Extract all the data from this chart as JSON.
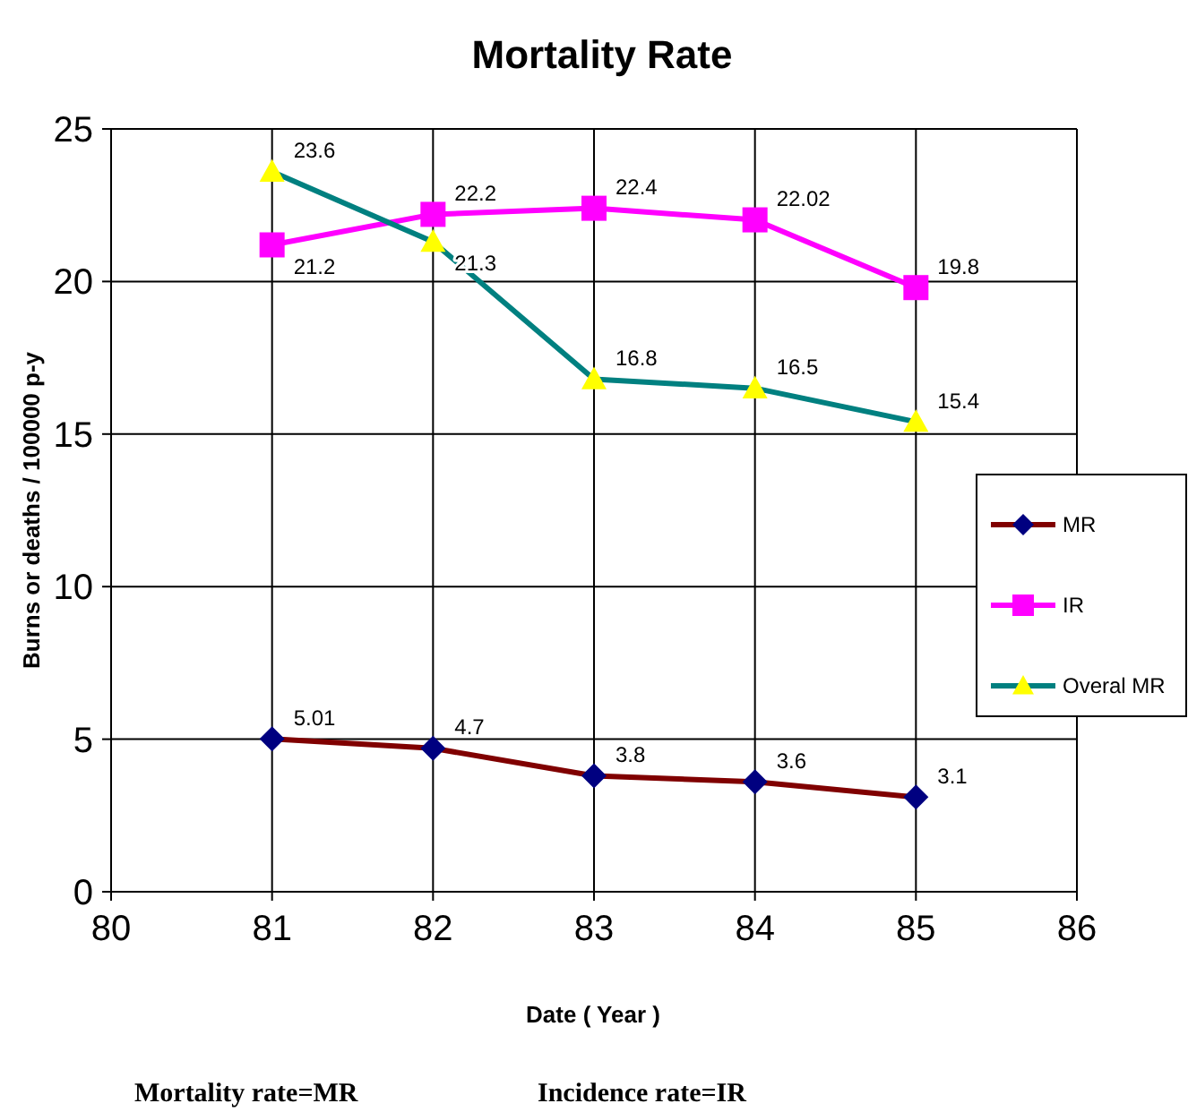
{
  "chart_data": {
    "type": "line",
    "title": "Mortality Rate",
    "xlabel": "Date ( Year )",
    "ylabel": "Burns or deaths / 100000 p-y",
    "x": [
      81,
      82,
      83,
      84,
      85
    ],
    "series": [
      {
        "name": "MR",
        "color": "#800000",
        "marker": "diamond",
        "colors": [
          "#000080",
          "#000080",
          "#000080",
          "#000080",
          "#000080"
        ],
        "values": [
          5.01,
          4.7,
          3.8,
          3.6,
          3.1
        ]
      },
      {
        "name": "IR",
        "color": "#ff00ff",
        "marker": "square",
        "colors": [
          "#ff00ff",
          "#ff00ff",
          "#ff00ff",
          "#ff00ff",
          "#ff00ff"
        ],
        "values": [
          21.2,
          22.2,
          22.4,
          22.02,
          19.8
        ]
      },
      {
        "name": "Overal MR",
        "color": "#008080",
        "marker": "triangle",
        "colors": [
          "#ffff00",
          "#ffff00",
          "#ffff00",
          "#ffff00",
          "#ffff00"
        ],
        "values": [
          23.6,
          21.3,
          16.8,
          16.5,
          15.4
        ]
      }
    ],
    "xlim": [
      80,
      86
    ],
    "xticks": [
      80,
      81,
      82,
      83,
      84,
      85,
      86
    ],
    "ylim": [
      0,
      25
    ],
    "yticks": [
      0,
      5,
      10,
      15,
      20,
      25
    ],
    "grid": true,
    "legend": "right",
    "data_labels": true,
    "line_style": "solid",
    "annotations": [
      "Mortality rate=MR",
      "Incidence rate=IR"
    ]
  }
}
